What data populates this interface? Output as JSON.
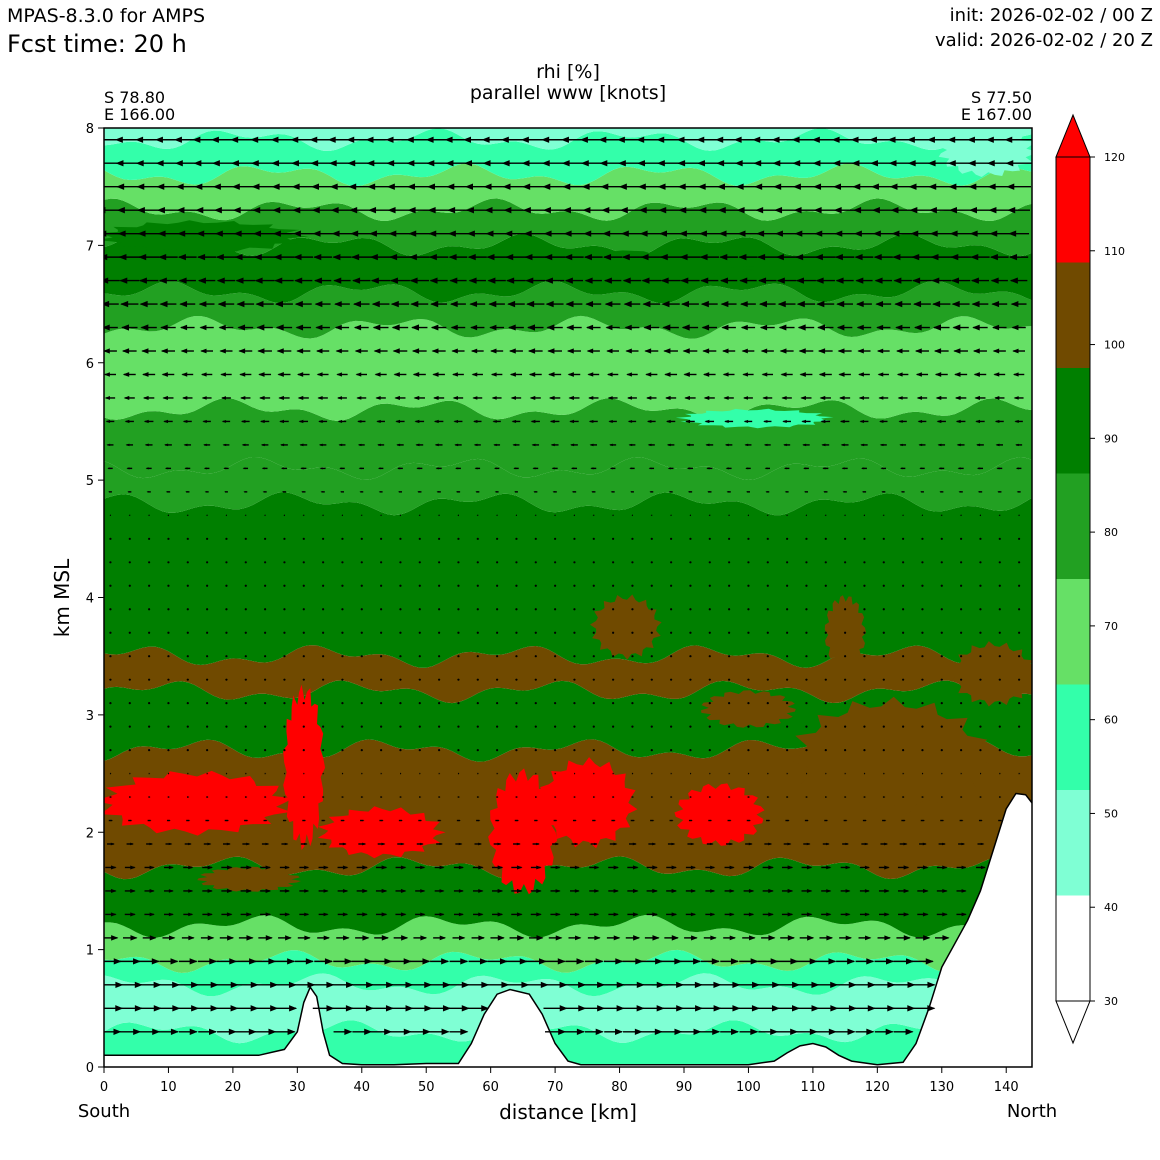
{
  "header": {
    "model": "MPAS-8.3.0 for AMPS",
    "fcst": "Fcst time:   20 h",
    "init": "init: 2026-02-02 / 00 Z",
    "valid": "valid: 2026-02-02 / 20 Z"
  },
  "chart_data": {
    "type": "heatmap",
    "title": "rhi [%]",
    "subtitle": "parallel www [knots]",
    "xlabel": "distance [km]",
    "ylabel": "km MSL",
    "xlim": [
      0,
      144
    ],
    "ylim": [
      0,
      8
    ],
    "x_ticks": [
      0,
      10,
      20,
      30,
      40,
      50,
      60,
      70,
      80,
      90,
      100,
      110,
      120,
      130,
      140
    ],
    "y_ticks": [
      0,
      1,
      2,
      3,
      4,
      5,
      6,
      7,
      8
    ],
    "start_point": [
      "S 78.80",
      "E 166.00"
    ],
    "end_point": [
      "S 77.50",
      "E 167.00"
    ],
    "start_label": "South",
    "end_label": "North",
    "colorbar": {
      "levels": [
        30,
        40,
        50,
        60,
        70,
        80,
        90,
        100,
        110,
        120
      ],
      "bounds": [
        30,
        40,
        50,
        60,
        70,
        80,
        100,
        110,
        120
      ],
      "colors": [
        "#ffffff",
        "#7fffd4",
        "#33ffaa",
        "#66e066",
        "#22a022",
        "#007f00",
        "#704a00",
        "#ff0000"
      ],
      "extend": "both"
    },
    "rhi_layers": [
      {
        "zmin": 0.0,
        "zmax": 0.3,
        "value": 55
      },
      {
        "zmin": 0.3,
        "zmax": 0.7,
        "value": 45
      },
      {
        "zmin": 0.7,
        "zmax": 0.9,
        "value": 55
      },
      {
        "zmin": 0.9,
        "zmax": 1.2,
        "value": 65
      },
      {
        "zmin": 1.2,
        "zmax": 1.7,
        "value": 80
      },
      {
        "zmin": 1.7,
        "zmax": 2.7,
        "value": 100
      },
      {
        "zmin": 2.7,
        "zmax": 3.2,
        "value": 85
      },
      {
        "zmin": 3.2,
        "zmax": 3.5,
        "value": 103
      },
      {
        "zmin": 3.5,
        "zmax": 4.8,
        "value": 85
      },
      {
        "zmin": 4.8,
        "zmax": 5.1,
        "value": 75
      },
      {
        "zmin": 5.1,
        "zmax": 5.6,
        "value": 75
      },
      {
        "zmin": 5.6,
        "zmax": 6.3,
        "value": 65
      },
      {
        "zmin": 6.3,
        "zmax": 6.6,
        "value": 75
      },
      {
        "zmin": 6.6,
        "zmax": 7.0,
        "value": 85
      },
      {
        "zmin": 7.0,
        "zmax": 7.3,
        "value": 75
      },
      {
        "zmin": 7.3,
        "zmax": 7.6,
        "value": 65
      },
      {
        "zmin": 7.6,
        "zmax": 7.9,
        "value": 55
      },
      {
        "zmin": 7.9,
        "zmax": 8.0,
        "value": 45
      }
    ],
    "rhi_patches": [
      {
        "x": [
          0,
          28
        ],
        "z": [
          2.0,
          2.5
        ],
        "value": 115
      },
      {
        "x": [
          28,
          34
        ],
        "z": [
          1.9,
          3.2
        ],
        "value": 115
      },
      {
        "x": [
          34,
          52
        ],
        "z": [
          1.8,
          2.2
        ],
        "value": 115
      },
      {
        "x": [
          60,
          70
        ],
        "z": [
          1.5,
          2.5
        ],
        "value": 115
      },
      {
        "x": [
          68,
          82
        ],
        "z": [
          1.9,
          2.6
        ],
        "value": 115
      },
      {
        "x": [
          89,
          102
        ],
        "z": [
          1.9,
          2.4
        ],
        "value": 115
      },
      {
        "x": [
          76,
          86
        ],
        "z": [
          3.5,
          4.0
        ],
        "value": 105
      },
      {
        "x": [
          112,
          118
        ],
        "z": [
          3.4,
          4.0
        ],
        "value": 105
      },
      {
        "x": [
          132,
          144
        ],
        "z": [
          3.1,
          3.6
        ],
        "value": 105
      },
      {
        "x": [
          93,
          107
        ],
        "z": [
          2.9,
          3.2
        ],
        "value": 105
      },
      {
        "x": [
          108,
          136
        ],
        "z": [
          2.2,
          3.1
        ],
        "value": 105
      },
      {
        "x": [
          15,
          30
        ],
        "z": [
          1.5,
          1.7
        ],
        "value": 105
      },
      {
        "x": [
          90,
          112
        ],
        "z": [
          5.45,
          5.6
        ],
        "value": 55
      },
      {
        "x": [
          52,
          100
        ],
        "z": [
          6.7,
          6.95
        ],
        "value": 90
      },
      {
        "x": [
          0,
          30
        ],
        "z": [
          6.95,
          7.2
        ],
        "value": 90
      },
      {
        "x": [
          130,
          144
        ],
        "z": [
          7.6,
          8.0
        ],
        "value": 45
      }
    ],
    "terrain": [
      [
        0,
        0.1
      ],
      [
        24,
        0.1
      ],
      [
        28,
        0.15
      ],
      [
        30,
        0.3
      ],
      [
        31,
        0.55
      ],
      [
        32,
        0.68
      ],
      [
        33,
        0.6
      ],
      [
        34,
        0.3
      ],
      [
        35,
        0.1
      ],
      [
        37,
        0.03
      ],
      [
        40,
        0.02
      ],
      [
        45,
        0.02
      ],
      [
        50,
        0.03
      ],
      [
        55,
        0.03
      ],
      [
        57,
        0.2
      ],
      [
        59,
        0.45
      ],
      [
        61,
        0.62
      ],
      [
        63,
        0.66
      ],
      [
        66,
        0.62
      ],
      [
        68,
        0.45
      ],
      [
        70,
        0.2
      ],
      [
        72,
        0.05
      ],
      [
        74,
        0.02
      ],
      [
        80,
        0.02
      ],
      [
        100,
        0.02
      ],
      [
        104,
        0.05
      ],
      [
        106,
        0.12
      ],
      [
        108,
        0.18
      ],
      [
        110,
        0.2
      ],
      [
        112,
        0.17
      ],
      [
        114,
        0.1
      ],
      [
        116,
        0.05
      ],
      [
        120,
        0.02
      ],
      [
        124,
        0.04
      ],
      [
        126,
        0.2
      ],
      [
        128,
        0.5
      ],
      [
        130,
        0.85
      ],
      [
        132,
        1.05
      ],
      [
        134,
        1.25
      ],
      [
        136,
        1.5
      ],
      [
        138,
        1.85
      ],
      [
        140,
        2.2
      ],
      [
        141.5,
        2.33
      ],
      [
        143,
        2.32
      ],
      [
        144,
        2.25
      ]
    ],
    "wind_knots_profile": [
      {
        "z": 0.3,
        "u": 6
      },
      {
        "z": 0.5,
        "u": 7
      },
      {
        "z": 0.7,
        "u": 7
      },
      {
        "z": 0.9,
        "u": 6
      },
      {
        "z": 1.1,
        "u": 4
      },
      {
        "z": 1.3,
        "u": 3
      },
      {
        "z": 1.5,
        "u": 3
      },
      {
        "z": 1.7,
        "u": 3
      },
      {
        "z": 1.9,
        "u": 2
      },
      {
        "z": 2.1,
        "u": 1
      },
      {
        "z": 2.3,
        "u": 0.5
      },
      {
        "z": 2.5,
        "u": 0.3
      },
      {
        "z": 2.7,
        "u": 0.2
      },
      {
        "z": 2.9,
        "u": 0.1
      },
      {
        "z": 3.1,
        "u": 0
      },
      {
        "z": 3.3,
        "u": 0
      },
      {
        "z": 3.5,
        "u": 0
      },
      {
        "z": 3.7,
        "u": 0
      },
      {
        "z": 3.9,
        "u": 0
      },
      {
        "z": 4.1,
        "u": 0
      },
      {
        "z": 4.3,
        "u": 0
      },
      {
        "z": 4.5,
        "u": 0
      },
      {
        "z": 4.7,
        "u": -0.3
      },
      {
        "z": 4.9,
        "u": -1
      },
      {
        "z": 5.1,
        "u": -1.5
      },
      {
        "z": 5.3,
        "u": -2
      },
      {
        "z": 5.5,
        "u": -2.5
      },
      {
        "z": 5.7,
        "u": -3
      },
      {
        "z": 5.9,
        "u": -3.5
      },
      {
        "z": 6.1,
        "u": -4
      },
      {
        "z": 6.3,
        "u": -4.5
      },
      {
        "z": 6.5,
        "u": -5
      },
      {
        "z": 6.7,
        "u": -5.5
      },
      {
        "z": 6.9,
        "u": -6
      },
      {
        "z": 7.1,
        "u": -6.5
      },
      {
        "z": 7.3,
        "u": -7
      },
      {
        "z": 7.5,
        "u": -7.5
      },
      {
        "z": 7.7,
        "u": -8
      },
      {
        "z": 7.9,
        "u": -8.5
      }
    ]
  }
}
